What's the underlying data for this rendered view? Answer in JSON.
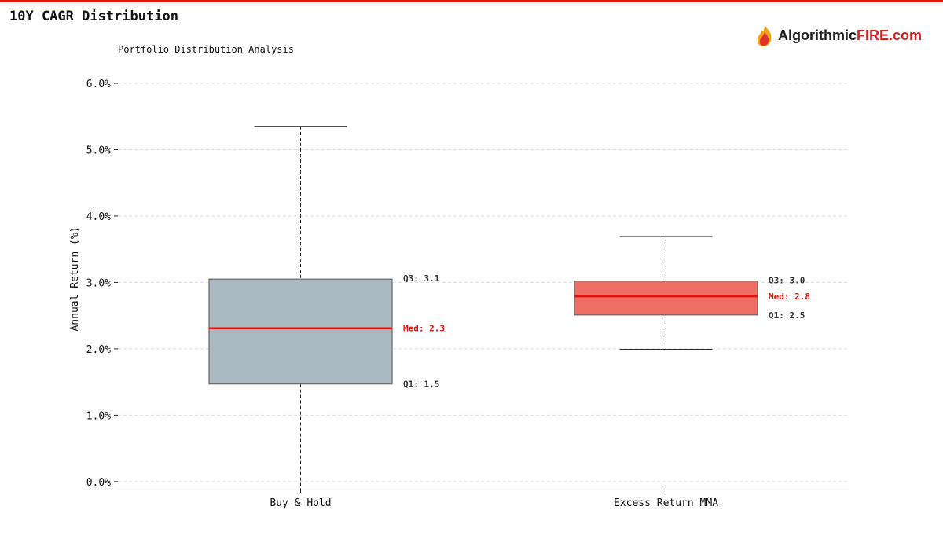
{
  "header": {
    "title": "10Y CAGR Distribution",
    "subtitle": "Portfolio Distribution Analysis"
  },
  "logo": {
    "text_main": "Algorithmic",
    "text_accent": "FIRE.com"
  },
  "colors": {
    "accent": "#e0140c",
    "box1": "#aab8bf",
    "box2": "#ee6e66",
    "median": "#e0140c"
  },
  "chart_data": {
    "type": "box",
    "title": "10Y CAGR Distribution",
    "subtitle": "Portfolio Distribution Analysis",
    "xlabel": "",
    "ylabel": "Annual Return (%)",
    "ylim": [
      -0.12,
      6.13
    ],
    "yticks": [
      0,
      1,
      2,
      3,
      4,
      5,
      6
    ],
    "ytick_labels": [
      "0.0%",
      "1.0%",
      "2.0%",
      "3.0%",
      "4.0%",
      "5.0%",
      "6.0%"
    ],
    "grid": true,
    "categories": [
      "Buy & Hold",
      "Excess Return MMA"
    ],
    "boxes": [
      {
        "name": "Buy & Hold",
        "whislo": -0.5,
        "q1": 1.47,
        "med": 2.31,
        "q3": 3.05,
        "whishi": 5.35,
        "labels": {
          "q3": "Q3: 3.1",
          "med": "Med: 2.3",
          "q1": "Q1: 1.5"
        }
      },
      {
        "name": "Excess Return MMA",
        "whislo": 1.99,
        "q1": 2.51,
        "med": 2.79,
        "q3": 3.02,
        "whishi": 3.69,
        "labels": {
          "q3": "Q3: 3.0",
          "med": "Med: 2.8",
          "q1": "Q1: 2.5"
        }
      }
    ]
  }
}
